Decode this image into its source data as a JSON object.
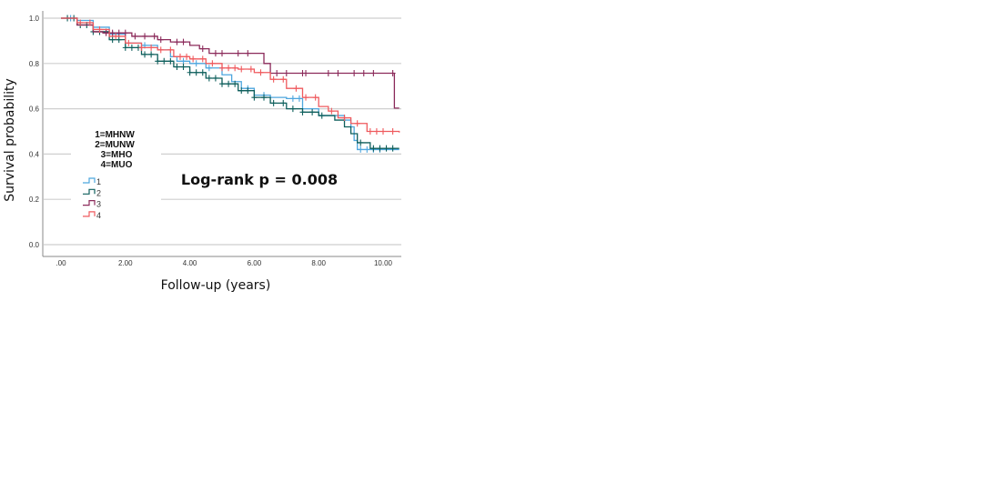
{
  "chart_data": {
    "type": "line",
    "subtype": "kaplan-meier step",
    "title": "",
    "xlabel": "Follow-up (years)",
    "ylabel": "Survival probability",
    "xlim": [
      -0.55,
      10.5
    ],
    "ylim": [
      -0.05,
      1.0
    ],
    "x_ticks": [
      0,
      2,
      4,
      6,
      8,
      10
    ],
    "x_tick_labels": [
      ".00",
      "2.00",
      "4.00",
      "6.00",
      "8.00",
      "10.00"
    ],
    "y_ticks": [
      0,
      0.2,
      0.4,
      0.6,
      0.8,
      1.0
    ],
    "y_tick_labels": [
      "0.0",
      "0.2",
      "0.4",
      "0.6",
      "0.8",
      "1.0"
    ],
    "grid": "horizontal",
    "legend_placement": "left-center",
    "legend_title_lines": [
      "1=MHNW",
      "2=MUNW",
      "3=MHO",
      "4=MUO"
    ],
    "annotation": "Log-rank p  =  0.008",
    "series": [
      {
        "name": "1",
        "color": "#4ea6de",
        "points": [
          [
            0,
            1
          ],
          [
            0.5,
            0.99
          ],
          [
            1,
            0.96
          ],
          [
            1.5,
            0.93
          ],
          [
            2,
            0.89
          ],
          [
            2.5,
            0.88
          ],
          [
            3,
            0.86
          ],
          [
            3.4,
            0.83
          ],
          [
            3.6,
            0.81
          ],
          [
            4,
            0.8
          ],
          [
            4.5,
            0.78
          ],
          [
            5,
            0.75
          ],
          [
            5.3,
            0.72
          ],
          [
            5.6,
            0.69
          ],
          [
            6,
            0.66
          ],
          [
            6.5,
            0.65
          ],
          [
            7,
            0.645
          ],
          [
            7.5,
            0.6
          ],
          [
            8,
            0.57
          ],
          [
            8.5,
            0.57
          ],
          [
            8.8,
            0.55
          ],
          [
            9,
            0.52
          ],
          [
            9.1,
            0.46
          ],
          [
            9.2,
            0.42
          ],
          [
            10.5,
            0.42
          ]
        ],
        "censored": [
          0.3,
          1.6,
          2.6,
          3.8,
          4.2,
          4.6,
          5.8,
          6.3,
          7.2,
          7.4,
          9.3,
          9.5,
          9.7,
          9.9
        ]
      },
      {
        "name": "2",
        "color": "#0e5f5c",
        "points": [
          [
            0,
            1
          ],
          [
            0.5,
            0.97
          ],
          [
            1,
            0.94
          ],
          [
            1.5,
            0.905
          ],
          [
            2,
            0.87
          ],
          [
            2.5,
            0.84
          ],
          [
            3,
            0.81
          ],
          [
            3.5,
            0.785
          ],
          [
            4,
            0.76
          ],
          [
            4.5,
            0.735
          ],
          [
            5,
            0.71
          ],
          [
            5.5,
            0.68
          ],
          [
            6,
            0.65
          ],
          [
            6.5,
            0.625
          ],
          [
            7,
            0.6
          ],
          [
            7.5,
            0.585
          ],
          [
            8,
            0.57
          ],
          [
            8.5,
            0.55
          ],
          [
            8.8,
            0.52
          ],
          [
            9,
            0.49
          ],
          [
            9.2,
            0.45
          ],
          [
            9.6,
            0.425
          ],
          [
            10.5,
            0.425
          ]
        ],
        "censored": [
          0.2,
          0.4,
          0.6,
          0.8,
          1.0,
          1.2,
          1.4,
          1.6,
          1.8,
          2.0,
          2.2,
          2.4,
          2.6,
          2.8,
          3.0,
          3.2,
          3.4,
          3.6,
          3.8,
          4.0,
          4.2,
          4.4,
          4.6,
          4.8,
          5.0,
          5.2,
          5.4,
          5.6,
          5.8,
          6.0,
          6.3,
          6.6,
          6.9,
          7.2,
          7.5,
          7.8,
          8.1,
          9.3,
          9.7,
          9.9,
          10.1,
          10.3
        ]
      },
      {
        "name": "3",
        "color": "#8b2a5a",
        "points": [
          [
            0,
            1
          ],
          [
            0.5,
            0.97
          ],
          [
            1,
            0.94
          ],
          [
            1.3,
            0.935
          ],
          [
            2.2,
            0.92
          ],
          [
            3,
            0.905
          ],
          [
            3.4,
            0.895
          ],
          [
            4,
            0.88
          ],
          [
            4.3,
            0.865
          ],
          [
            4.6,
            0.845
          ],
          [
            6.2,
            0.845
          ],
          [
            6.3,
            0.8
          ],
          [
            6.5,
            0.757
          ],
          [
            10.3,
            0.757
          ],
          [
            10.35,
            0.603
          ],
          [
            10.5,
            0.603
          ]
        ],
        "censored": [
          1.4,
          1.6,
          1.8,
          2.0,
          2.3,
          2.6,
          2.9,
          3.1,
          3.6,
          3.8,
          4.4,
          4.8,
          5.0,
          5.5,
          5.8,
          6.7,
          7.0,
          7.5,
          7.6,
          8.3,
          8.6,
          9.1,
          9.4,
          9.7,
          10.3
        ]
      },
      {
        "name": "4",
        "color": "#ef5a5e",
        "points": [
          [
            0,
            1
          ],
          [
            0.5,
            0.98
          ],
          [
            1,
            0.95
          ],
          [
            1.5,
            0.92
          ],
          [
            2,
            0.89
          ],
          [
            2.5,
            0.87
          ],
          [
            3,
            0.86
          ],
          [
            3.5,
            0.83
          ],
          [
            4,
            0.82
          ],
          [
            4.5,
            0.8
          ],
          [
            5,
            0.78
          ],
          [
            5.5,
            0.775
          ],
          [
            6,
            0.76
          ],
          [
            6.5,
            0.73
          ],
          [
            7,
            0.69
          ],
          [
            7.5,
            0.65
          ],
          [
            8,
            0.61
          ],
          [
            8.3,
            0.59
          ],
          [
            8.6,
            0.56
          ],
          [
            9,
            0.535
          ],
          [
            9.5,
            0.5
          ],
          [
            10.5,
            0.495
          ]
        ],
        "censored": [
          0.6,
          0.9,
          1.2,
          1.7,
          2.1,
          2.5,
          2.8,
          3.1,
          3.4,
          3.7,
          3.9,
          4.1,
          4.4,
          4.7,
          5.0,
          5.2,
          5.4,
          5.6,
          5.9,
          6.2,
          6.6,
          6.9,
          7.3,
          7.6,
          7.9,
          8.4,
          8.8,
          9.2,
          9.6,
          9.8,
          10.0,
          10.3
        ]
      }
    ]
  }
}
